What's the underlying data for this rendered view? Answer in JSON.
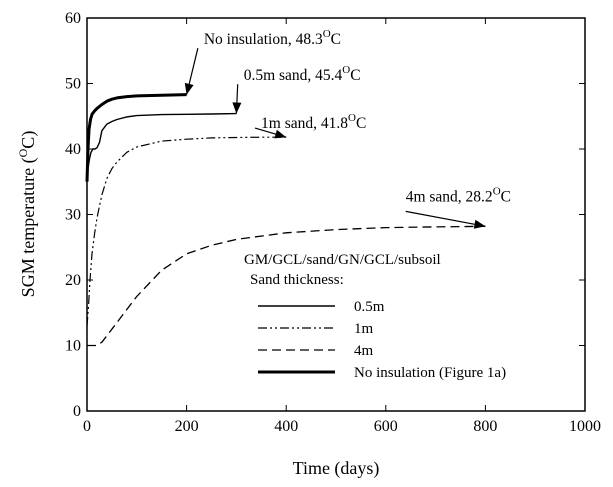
{
  "chart_data": {
    "type": "line",
    "title": "",
    "xlabel": "Time (days)",
    "ylabel_main": "SGM temperature (",
    "ylabel_unit_sup": "O",
    "ylabel_unit": "C)",
    "xlim": [
      0,
      1000
    ],
    "ylim": [
      0,
      60
    ],
    "xticks": [
      0,
      200,
      400,
      600,
      800,
      1000
    ],
    "yticks": [
      0,
      10,
      20,
      30,
      40,
      50,
      60
    ],
    "grid": false,
    "legend_placement": "bottom-right",
    "legend_title_line1": "GM/GCL/sand/GN/GCL/subsoil",
    "legend_title_line2": "Sand thickness:",
    "series": [
      {
        "name": "0.5m",
        "style": "solid",
        "x": [
          0,
          2,
          5,
          8,
          12,
          16,
          20,
          25,
          30,
          40,
          50,
          60,
          80,
          100,
          150,
          200,
          250,
          300
        ],
        "y": [
          35,
          37,
          38.5,
          39.5,
          40,
          40,
          40.2,
          41,
          42.8,
          43.8,
          44.2,
          44.5,
          44.9,
          45.1,
          45.25,
          45.3,
          45.35,
          45.4
        ]
      },
      {
        "name": "1m",
        "style": "dashdotdot",
        "x": [
          0,
          3,
          6,
          10,
          15,
          20,
          30,
          40,
          50,
          60,
          80,
          100,
          150,
          200,
          250,
          300,
          350,
          400
        ],
        "y": [
          13,
          16,
          20,
          24,
          27,
          29.5,
          33,
          35.5,
          37,
          38,
          39.5,
          40.3,
          41.2,
          41.5,
          41.7,
          41.75,
          41.8,
          41.8
        ]
      },
      {
        "name": "4m",
        "style": "dashed",
        "x": [
          0,
          10,
          20,
          30,
          40,
          60,
          80,
          100,
          150,
          200,
          250,
          300,
          400,
          500,
          600,
          700,
          800
        ],
        "y": [
          10,
          10,
          10,
          10.5,
          11.5,
          13.5,
          15.5,
          17.5,
          21.5,
          24,
          25.3,
          26.2,
          27.2,
          27.7,
          28,
          28.1,
          28.2
        ]
      },
      {
        "name": "No insulation (Figure 1a)",
        "style": "thick",
        "x": [
          0,
          2,
          4,
          7,
          10,
          15,
          20,
          30,
          40,
          50,
          60,
          80,
          100,
          150,
          200
        ],
        "y": [
          35,
          40,
          43,
          44.5,
          45.3,
          45.8,
          46.2,
          46.8,
          47.3,
          47.6,
          47.8,
          48,
          48.1,
          48.2,
          48.3
        ]
      }
    ],
    "annotations": [
      {
        "text": "No insulation, 48.3",
        "sup": "O",
        "unit": "C",
        "point": [
          200,
          48.3
        ],
        "label_at": [
          315,
          56
        ]
      },
      {
        "text": "0.5m sand, 45.4",
        "sup": "O",
        "unit": "C",
        "point": [
          300,
          45.4
        ],
        "label_at": [
          395,
          50.5
        ]
      },
      {
        "text": "1m sand, 41.8",
        "sup": "O",
        "unit": "C",
        "point": [
          400,
          41.8
        ],
        "label_at": [
          490,
          43.2
        ]
      },
      {
        "text": "4m sand, 28.2",
        "sup": "O",
        "unit": "C",
        "point": [
          800,
          28.2
        ],
        "label_at": [
          640,
          32
        ]
      }
    ]
  }
}
